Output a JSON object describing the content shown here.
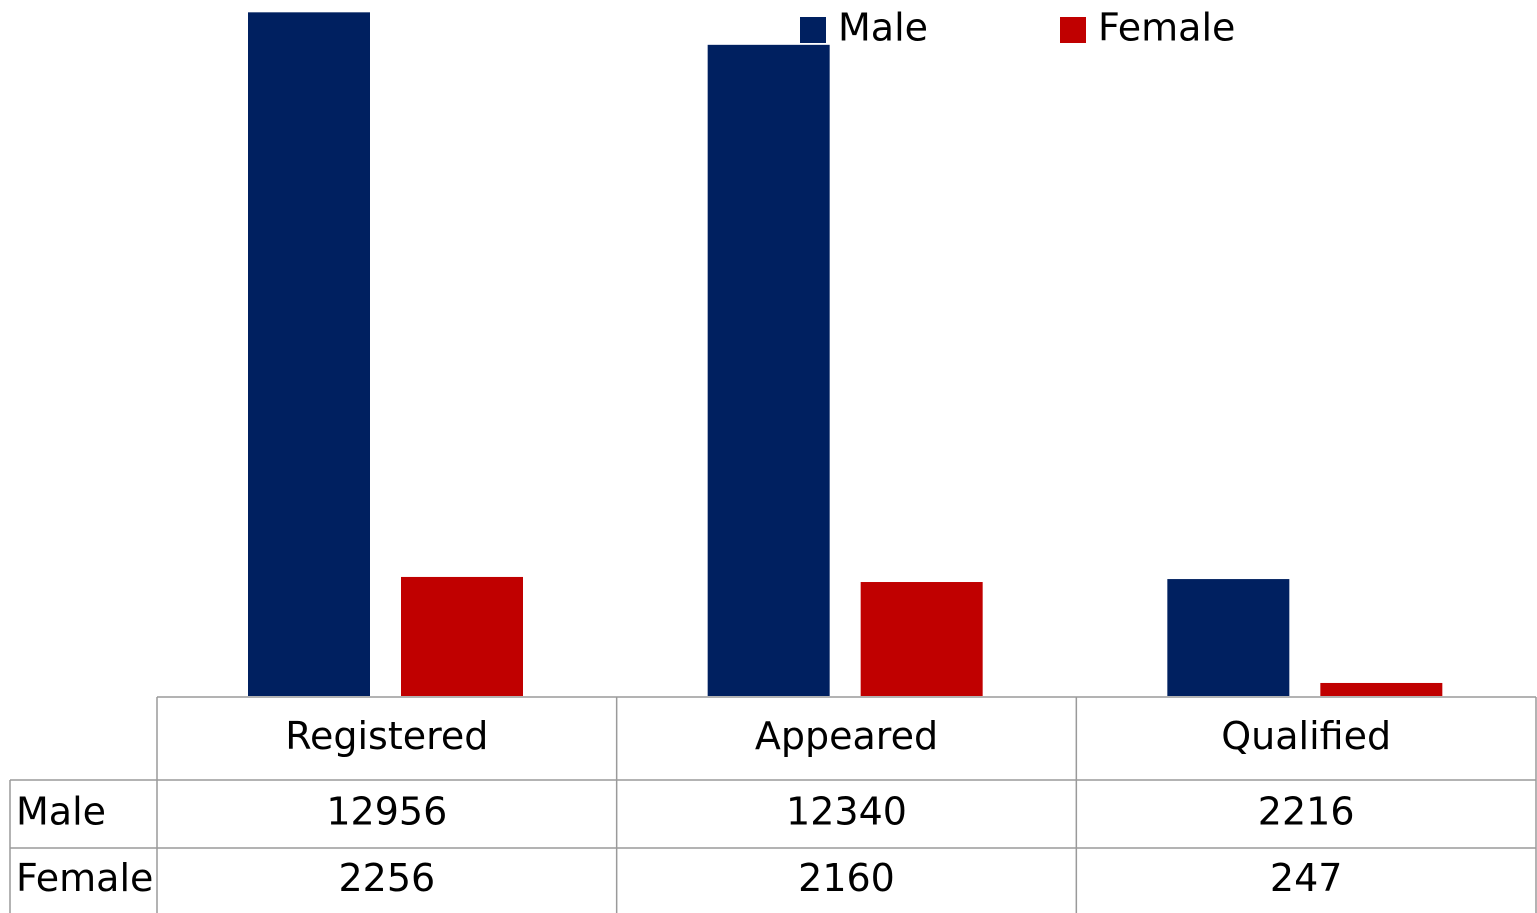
{
  "chart_data": {
    "type": "bar",
    "categories": [
      "Registered",
      "Appeared",
      "Qualified"
    ],
    "series": [
      {
        "name": "Male",
        "color": "#002060",
        "values": [
          12956,
          12340,
          2216
        ]
      },
      {
        "name": "Female",
        "color": "#c00000",
        "values": [
          2256,
          2160,
          247
        ]
      }
    ],
    "ylim": [
      0,
      13000
    ]
  }
}
